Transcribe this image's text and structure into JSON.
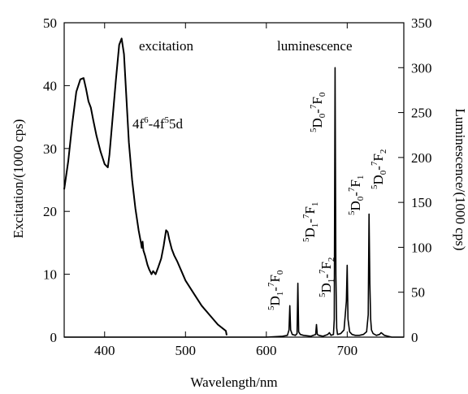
{
  "chart_data": {
    "type": "line",
    "xlabel": "Wavelength/nm",
    "ylabel_left": "Excitation/(1000 cps)",
    "ylabel_right": "Luminescence/(1000 cps)",
    "xlim": [
      350,
      770
    ],
    "ylim_left": [
      0,
      50
    ],
    "ylim_right": [
      0,
      350
    ],
    "x_ticks": [
      400,
      500,
      600,
      700
    ],
    "y_ticks_left": [
      0,
      10,
      20,
      30,
      40,
      50
    ],
    "y_ticks_right": [
      0,
      50,
      100,
      150,
      200,
      250,
      300,
      350
    ],
    "grid": false,
    "annotations": {
      "excitation": "excitation",
      "luminescence": "luminescence",
      "fd_prefix": "4f",
      "fd_sup1": "6",
      "fd_mid": "-4f",
      "fd_sup2": "5",
      "fd_suffix": "5d",
      "t_5d1_7f0": {
        "s1": "5",
        "a": "D",
        "b1": "1",
        "dash": "-",
        "s2": "7",
        "c": "F",
        "b2": "0"
      },
      "t_5d1_7f1": {
        "s1": "5",
        "a": "D",
        "b1": "1",
        "dash": "-",
        "s2": "7",
        "c": "F",
        "b2": "1"
      },
      "t_5d1_7f2": {
        "s1": "5",
        "a": "D",
        "b1": "1",
        "dash": "-",
        "s2": "7",
        "c": "F",
        "b2": "2"
      },
      "t_5d0_7f0": {
        "s1": "5",
        "a": "D",
        "b1": "0",
        "dash": "-",
        "s2": "7",
        "c": "F",
        "b2": "0"
      },
      "t_5d0_7f1": {
        "s1": "5",
        "a": "D",
        "b1": "0",
        "dash": "-",
        "s2": "7",
        "c": "F",
        "b2": "1"
      },
      "t_5d0_7f2": {
        "s1": "5",
        "a": "D",
        "b1": "0",
        "dash": "-",
        "s2": "7",
        "c": "F",
        "b2": "2"
      }
    },
    "series": [
      {
        "axis": "left",
        "x": [
          350,
          355,
          360,
          365,
          370,
          374,
          377,
          380,
          383,
          386,
          390,
          395,
          400,
          404,
          406,
          410,
          414,
          418,
          421,
          424,
          427,
          430,
          434,
          438,
          442,
          445,
          446,
          447,
          448,
          450,
          453,
          455,
          458,
          460,
          463,
          466,
          470,
          473,
          476,
          478,
          480,
          483,
          486,
          490,
          495,
          500,
          510,
          520,
          530,
          540,
          550,
          551
        ],
        "y": [
          23.5,
          28,
          34,
          39,
          41,
          41.2,
          39.5,
          37.5,
          36.5,
          34.5,
          32,
          29.5,
          27.5,
          27,
          29,
          35,
          41,
          46.5,
          47.5,
          45,
          38,
          31,
          25,
          20.5,
          17,
          15,
          14.2,
          15.2,
          13.8,
          13,
          11.5,
          10.8,
          10,
          10.5,
          10,
          11,
          12.5,
          14.5,
          17,
          16.7,
          15.5,
          14,
          13,
          12,
          10.5,
          9,
          7,
          5,
          3.5,
          2,
          1,
          0.3
        ]
      },
      {
        "axis": "right",
        "x": [
          350,
          550,
          600,
          620,
          626,
          628,
          629,
          630,
          632,
          636,
          638,
          639,
          640,
          642,
          646,
          655,
          661,
          662,
          663,
          665,
          670,
          676,
          678,
          680,
          683,
          684,
          685,
          686,
          687,
          688,
          692,
          696,
          699,
          700,
          701,
          703,
          706,
          710,
          715,
          720,
          724,
          726,
          727,
          728,
          729,
          730,
          732,
          736,
          740,
          742,
          746,
          755,
          770
        ],
        "y": [
          0,
          0,
          0,
          1,
          2,
          8,
          35,
          8,
          3,
          2,
          4,
          60,
          6,
          3,
          2,
          1,
          3,
          14,
          3,
          2,
          1,
          3,
          5,
          2,
          3,
          20,
          300,
          70,
          10,
          3,
          4,
          8,
          40,
          80,
          20,
          6,
          3,
          2,
          2,
          3,
          6,
          25,
          137,
          60,
          20,
          8,
          4,
          2,
          3,
          5,
          2,
          0,
          0
        ]
      }
    ]
  }
}
